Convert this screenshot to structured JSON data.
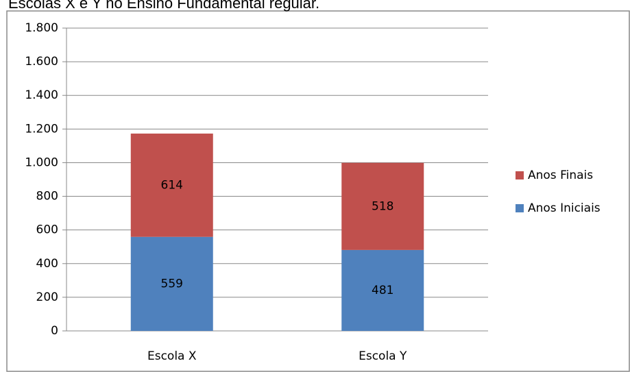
{
  "chart_data": {
    "type": "bar",
    "stacked": true,
    "title": "Escolas X e Y no Ensino Fundamental regular.",
    "categories": [
      "Escola X",
      "Escola Y"
    ],
    "series": [
      {
        "name": "Anos Iniciais",
        "color": "#4f81bd",
        "values": [
          559,
          481
        ]
      },
      {
        "name": "Anos Finais",
        "color": "#c0504d",
        "values": [
          614,
          518
        ]
      }
    ],
    "ylim": [
      0,
      1800
    ],
    "yticks": [
      0,
      200,
      400,
      600,
      800,
      {
        "value": 1000,
        "label": "1.000"
      },
      {
        "value": 1200,
        "label": "1.200"
      },
      {
        "value": 1400,
        "label": "1.400"
      },
      {
        "value": 1600,
        "label": "1.600"
      },
      {
        "value": 1800,
        "label": "1.800"
      }
    ],
    "grid": true,
    "legend": "right"
  }
}
